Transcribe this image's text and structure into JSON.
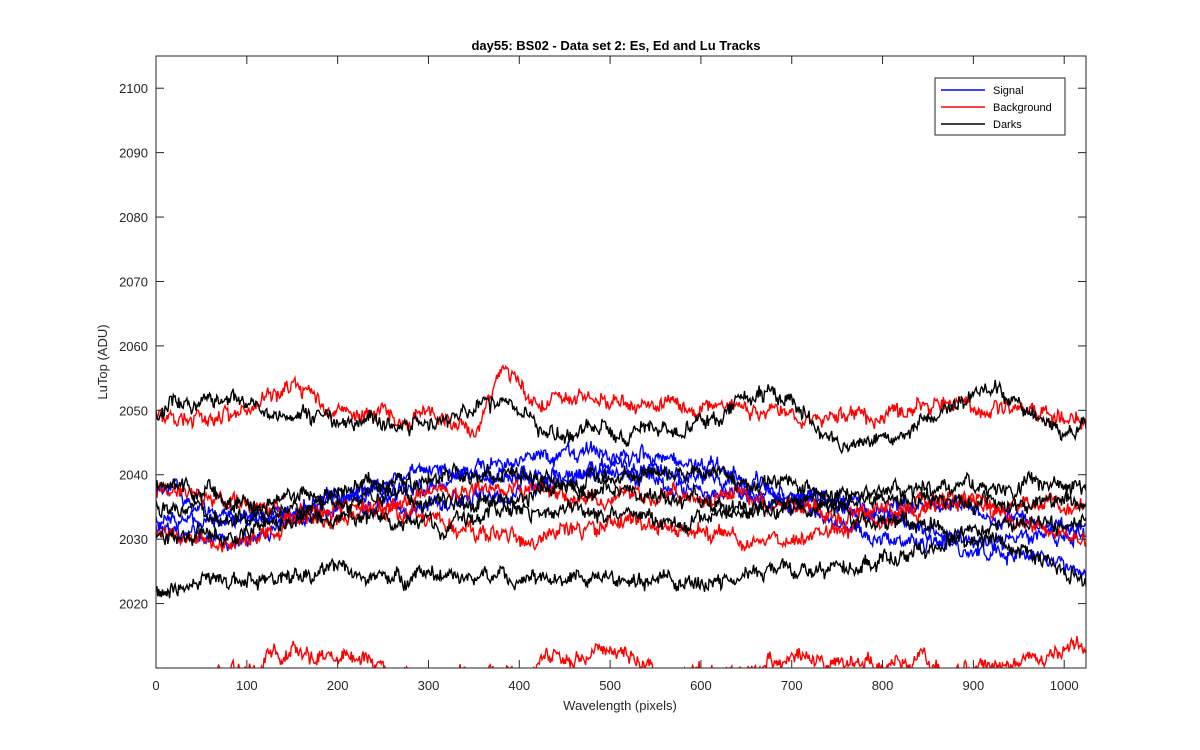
{
  "chart_data": {
    "type": "line",
    "title": "day55: BS02 - Data set 2: Es, Ed and Lu Tracks",
    "xlabel": "Wavelength (pixels)",
    "ylabel": "LuTop (ADU)",
    "xlim": [
      0,
      1024
    ],
    "ylim": [
      2010,
      2105
    ],
    "xticks": [
      0,
      100,
      200,
      300,
      400,
      500,
      600,
      700,
      800,
      900,
      1000
    ],
    "yticks": [
      2020,
      2030,
      2040,
      2050,
      2060,
      2070,
      2080,
      2090,
      2100
    ],
    "grid": false,
    "legend_position": "top-right",
    "legend": [
      {
        "label": "Signal",
        "color": "#0000ff"
      },
      {
        "label": "Background",
        "color": "#ff0000"
      },
      {
        "label": "Darks",
        "color": "#000000"
      }
    ],
    "series_count": 3,
    "series": [
      {
        "group": "Signal",
        "color": "#0000ff",
        "x": [
          0,
          100,
          200,
          300,
          400,
          450,
          500,
          550,
          600,
          700,
          800,
          900,
          1000,
          1024
        ],
        "values": [
          2033,
          2032,
          2037,
          2038,
          2042,
          2044,
          2044,
          2043,
          2041,
          2036,
          2031,
          2028,
          2026,
          2025
        ]
      },
      {
        "group": "Signal",
        "color": "#0000ff",
        "x": [
          0,
          100,
          200,
          300,
          400,
          500,
          600,
          700,
          800,
          900,
          1000,
          1024
        ],
        "values": [
          2036,
          2034,
          2036,
          2040,
          2040,
          2041,
          2039,
          2037,
          2035,
          2034,
          2033,
          2033
        ]
      },
      {
        "group": "Signal",
        "color": "#0000ff",
        "x": [
          0,
          100,
          200,
          300,
          400,
          500,
          600,
          700,
          800,
          900,
          1000,
          1024
        ],
        "values": [
          2032,
          2030,
          2034,
          2036,
          2038,
          2040,
          2038,
          2036,
          2033,
          2031,
          2030,
          2031
        ]
      },
      {
        "group": "Background",
        "color": "#ff0000",
        "x": [
          0,
          100,
          150,
          200,
          300,
          350,
          385,
          420,
          500,
          600,
          700,
          800,
          880,
          900,
          1000,
          1024
        ],
        "values": [
          2050,
          2048,
          2054,
          2050,
          2050,
          2046,
          2056,
          2050,
          2052,
          2051,
          2048,
          2050,
          2052,
          2051,
          2048,
          2049
        ]
      },
      {
        "group": "Background",
        "color": "#ff0000",
        "x": [
          0,
          100,
          200,
          300,
          400,
          500,
          600,
          700,
          800,
          900,
          1000,
          1024
        ],
        "values": [
          2037,
          2035,
          2034,
          2036,
          2038,
          2037,
          2036,
          2035,
          2034,
          2035,
          2036,
          2037
        ]
      },
      {
        "group": "Background",
        "color": "#ff0000",
        "x": [
          0,
          100,
          200,
          300,
          400,
          500,
          600,
          700,
          800,
          900,
          1000,
          1024
        ],
        "values": [
          2031,
          2030,
          2035,
          2033,
          2031,
          2032,
          2031,
          2030,
          2034,
          2036,
          2031,
          2030
        ]
      },
      {
        "group": "Background",
        "color": "#ff0000",
        "x": [
          0,
          50,
          100,
          150,
          200,
          250,
          300,
          350,
          400,
          450,
          500,
          550,
          600,
          650,
          700,
          750,
          800,
          850,
          900,
          950,
          1000,
          1024
        ],
        "values": [
          2010,
          2009,
          2010,
          2012,
          2011,
          2010,
          2009,
          2010,
          2009,
          2011,
          2012,
          2010,
          2010,
          2009,
          2012,
          2010,
          2011,
          2012,
          2010,
          2011,
          2012,
          2012
        ]
      },
      {
        "group": "Darks",
        "color": "#000000",
        "x": [
          0,
          90,
          150,
          200,
          300,
          380,
          430,
          500,
          600,
          680,
          760,
          850,
          920,
          1000,
          1024
        ],
        "values": [
          2050,
          2052,
          2048,
          2049,
          2048,
          2051,
          2046,
          2047,
          2048,
          2052,
          2044,
          2049,
          2053,
          2046,
          2048
        ]
      },
      {
        "group": "Darks",
        "color": "#000000",
        "x": [
          0,
          100,
          200,
          300,
          400,
          500,
          600,
          700,
          800,
          900,
          1000,
          1024
        ],
        "values": [
          2038,
          2036,
          2038,
          2039,
          2040,
          2040,
          2039,
          2039,
          2037,
          2038,
          2039,
          2038
        ]
      },
      {
        "group": "Darks",
        "color": "#000000",
        "x": [
          0,
          100,
          200,
          300,
          400,
          500,
          600,
          700,
          800,
          900,
          1000,
          1024
        ],
        "values": [
          2035,
          2034,
          2035,
          2036,
          2037,
          2037,
          2036,
          2036,
          2035,
          2036,
          2036,
          2035
        ]
      },
      {
        "group": "Darks",
        "color": "#000000",
        "x": [
          0,
          100,
          200,
          300,
          400,
          500,
          600,
          700,
          800,
          900,
          1000,
          1024
        ],
        "values": [
          2032,
          2031,
          2033,
          2033,
          2034,
          2034,
          2034,
          2034,
          2033,
          2032,
          2032,
          2032
        ]
      },
      {
        "group": "Darks",
        "color": "#000000",
        "x": [
          0,
          80,
          200,
          300,
          400,
          500,
          600,
          700,
          800,
          900,
          1000,
          1024
        ],
        "values": [
          2023,
          2022,
          2026,
          2024,
          2023,
          2025,
          2023,
          2025,
          2028,
          2030,
          2025,
          2024
        ]
      }
    ]
  }
}
